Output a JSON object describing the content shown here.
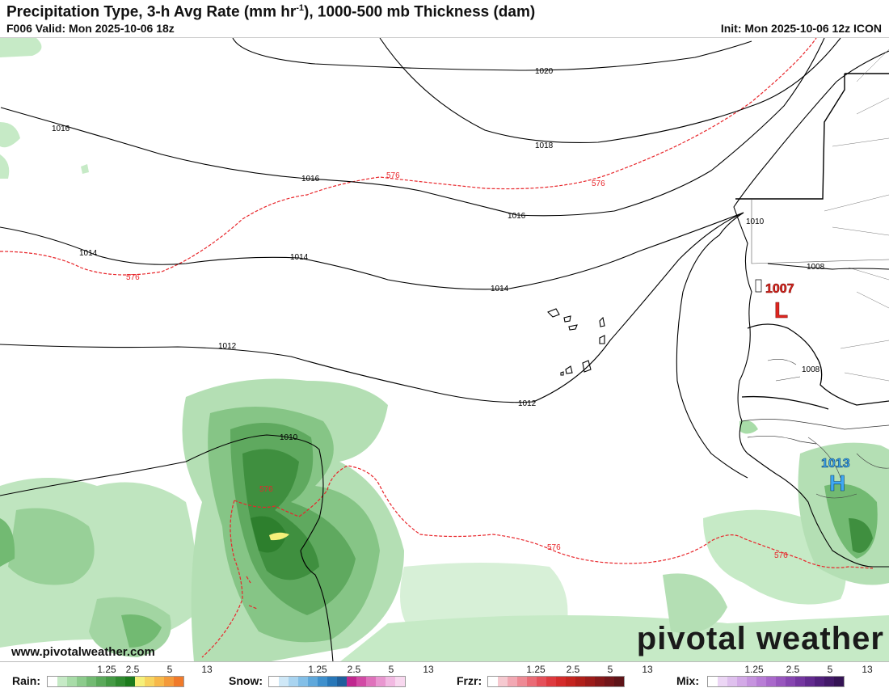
{
  "header": {
    "title_main": "Precipitation Type, 3-h Avg Rate (mm hr",
    "title_sup": "-1",
    "title_tail": "), 1000-500 mb Thickness (dam)",
    "valid": "F006 Valid: Mon 2025-10-06 18z",
    "init": "Init: Mon 2025-10-06 12z ICON"
  },
  "map": {
    "isobar_labels": [
      "1020",
      "1018",
      "1016",
      "1016",
      "1016",
      "1014",
      "1014",
      "1014",
      "1012",
      "1012",
      "1010",
      "1010",
      "1008",
      "1008"
    ],
    "thickness_labels": [
      "576",
      "576",
      "576",
      "576",
      "576",
      "576"
    ],
    "pressure_centers": [
      {
        "type": "L",
        "value": "1007",
        "color": "#e0261f"
      },
      {
        "type": "H",
        "value": "1013",
        "color": "#3fa9f5"
      }
    ],
    "colors": {
      "isobar": "#000000",
      "thickness": "#e8262b",
      "land_border": "#000000"
    }
  },
  "branding": {
    "logo": "pivotal weather",
    "url": "www.pivotalweather.com"
  },
  "legend": [
    {
      "label": "Rain:",
      "ticks": [
        "1.25",
        "2.5",
        "5",
        "13"
      ],
      "colors": [
        "#ffffff",
        "#c6eac6",
        "#a8dca8",
        "#8ccb8c",
        "#72ba72",
        "#5aa95a",
        "#449a44",
        "#2f8a2f",
        "#1c7b1c",
        "#f5f07a",
        "#f7d45f",
        "#f7b84a",
        "#f49a3a",
        "#f07a2a"
      ]
    },
    {
      "label": "Snow:",
      "ticks": [
        "1.25",
        "2.5",
        "5",
        "13"
      ],
      "colors": [
        "#ffffff",
        "#cfe8f7",
        "#a9d4f0",
        "#83bfe7",
        "#5fa8db",
        "#3f90cd",
        "#2877b8",
        "#1f5f9c",
        "#c0278f",
        "#d24aa5",
        "#df71bb",
        "#e996d0",
        "#f2b9e2",
        "#f8d8ef"
      ]
    },
    {
      "label": "Frzr:",
      "ticks": [
        "1.25",
        "2.5",
        "5",
        "13"
      ],
      "colors": [
        "#ffffff",
        "#f6c9d0",
        "#f2a8b3",
        "#ee8a95",
        "#ea6b76",
        "#e5505a",
        "#de3a3f",
        "#d42b2b",
        "#c4241f",
        "#b01f1a",
        "#9c1b1a",
        "#86181a",
        "#72161a",
        "#5e1418"
      ]
    },
    {
      "label": "Mix:",
      "ticks": [
        "1.25",
        "2.5",
        "5",
        "13"
      ],
      "colors": [
        "#ffffff",
        "#ecd6f5",
        "#dfc0ee",
        "#d3a9e7",
        "#c693df",
        "#b87dd6",
        "#a968cb",
        "#9856be",
        "#8645b0",
        "#7436a0",
        "#622a8f",
        "#51207c",
        "#421968",
        "#341354"
      ]
    }
  ]
}
